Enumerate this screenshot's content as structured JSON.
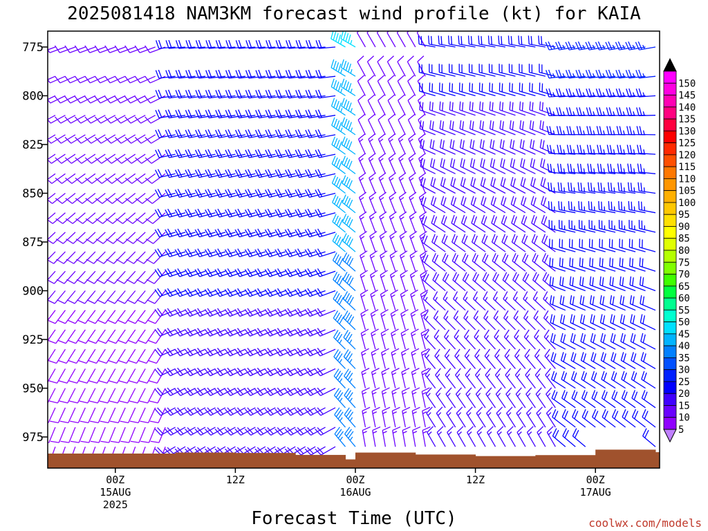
{
  "chart_data": {
    "type": "wind-barb-profile",
    "title": "2025081418 NAM3KM forecast wind profile (kt) for KAIA",
    "xlabel": "Forecast Time (UTC)",
    "credit": "coolwx.com/models",
    "y_axis": {
      "quantity": "pressure (hPa)",
      "ticks": [
        "775",
        "800",
        "825",
        "850",
        "875",
        "900",
        "925",
        "950",
        "975"
      ],
      "range": [
        767,
        990
      ],
      "inverted": true
    },
    "x_axis": {
      "start": "2025-08-14 18Z",
      "end": "2025-08-17 06Z",
      "step_hours": 1,
      "ticks": [
        {
          "time": "2025-08-15 00Z",
          "line1": "00Z",
          "line2": "15AUG",
          "line3": "2025"
        },
        {
          "time": "2025-08-15 12Z",
          "line1": "12Z",
          "line2": "",
          "line3": ""
        },
        {
          "time": "2025-08-16 00Z",
          "line1": "00Z",
          "line2": "16AUG",
          "line3": ""
        },
        {
          "time": "2025-08-16 12Z",
          "line1": "12Z",
          "line2": "",
          "line3": ""
        },
        {
          "time": "2025-08-17 00Z",
          "line1": "00Z",
          "line2": "17AUG",
          "line3": ""
        }
      ]
    },
    "colorbar": {
      "labels": [
        "150",
        "145",
        "140",
        "135",
        "130",
        "125",
        "120",
        "115",
        "110",
        "105",
        "100",
        "95",
        "90",
        "85",
        "80",
        "75",
        "70",
        "65",
        "60",
        "55",
        "50",
        "45",
        "40",
        "35",
        "30",
        "25",
        "20",
        "15",
        "10",
        "5"
      ],
      "colors": [
        "#ff00ff",
        "#ff00e0",
        "#ff00b4",
        "#ff0080",
        "#ff0040",
        "#ff0000",
        "#ff2a00",
        "#ff5000",
        "#ff7800",
        "#ff9600",
        "#ffb000",
        "#ffc800",
        "#ffe000",
        "#ffff00",
        "#e0ff00",
        "#b4ff00",
        "#80ff00",
        "#40ff00",
        "#00ff40",
        "#00ff90",
        "#00ffd0",
        "#00e0ff",
        "#00b4ff",
        "#0080ff",
        "#0050ff",
        "#0020ff",
        "#0000ff",
        "#4000ff",
        "#6a00ff",
        "#9000ff"
      ],
      "over_color": "#000000",
      "under_color": "#c080ff"
    },
    "surface_color": "#a0522d",
    "surface_pressure": [
      {
        "time": "2025-08-14 18Z",
        "hpa": 983.5
      },
      {
        "time": "2025-08-15 06Z",
        "hpa": 983.0
      },
      {
        "time": "2025-08-15 12Z",
        "hpa": 983.2
      },
      {
        "time": "2025-08-15 18Z",
        "hpa": 984.2
      },
      {
        "time": "2025-08-15 23Z",
        "hpa": 986.5
      },
      {
        "time": "2025-08-16 00Z",
        "hpa": 983.0
      },
      {
        "time": "2025-08-16 06Z",
        "hpa": 984.0
      },
      {
        "time": "2025-08-16 12Z",
        "hpa": 984.8
      },
      {
        "time": "2025-08-16 18Z",
        "hpa": 984.3
      },
      {
        "time": "2025-08-17 00Z",
        "hpa": 981.5
      },
      {
        "time": "2025-08-17 06Z",
        "hpa": 982.8
      }
    ],
    "wind": {
      "units": "kt",
      "levels_hpa": [
        775,
        790,
        800,
        810,
        820,
        830,
        840,
        850,
        860,
        870,
        880,
        890,
        900,
        910,
        920,
        930,
        940,
        950,
        960,
        970,
        980
      ],
      "regimes": [
        {
          "from": "2025-08-14 18Z",
          "to": "2025-08-15 05Z",
          "upper_dir": 250,
          "upper_kt": 12,
          "lower_dir": 200,
          "lower_kt": 8
        },
        {
          "from": "2025-08-15 06Z",
          "to": "2025-08-15 22Z",
          "upper_dir": 265,
          "upper_kt": 22,
          "lower_dir": 240,
          "lower_kt": 18
        },
        {
          "from": "2025-08-15 23Z",
          "to": "2025-08-16 00Z",
          "upper_dir": 300,
          "upper_kt": 45,
          "lower_dir": 320,
          "lower_kt": 35
        },
        {
          "from": "2025-08-16 01Z",
          "to": "2025-08-16 07Z",
          "upper_dir": 330,
          "upper_kt": 12,
          "lower_dir": 350,
          "lower_kt": 14
        },
        {
          "from": "2025-08-16 08Z",
          "to": "2025-08-16 20Z",
          "upper_dir": 280,
          "upper_kt": 20,
          "lower_dir": 330,
          "lower_kt": 16
        },
        {
          "from": "2025-08-16 21Z",
          "to": "2025-08-17 06Z",
          "upper_dir": 260,
          "upper_kt": 25,
          "lower_dir": 310,
          "lower_kt": 20
        }
      ]
    }
  }
}
